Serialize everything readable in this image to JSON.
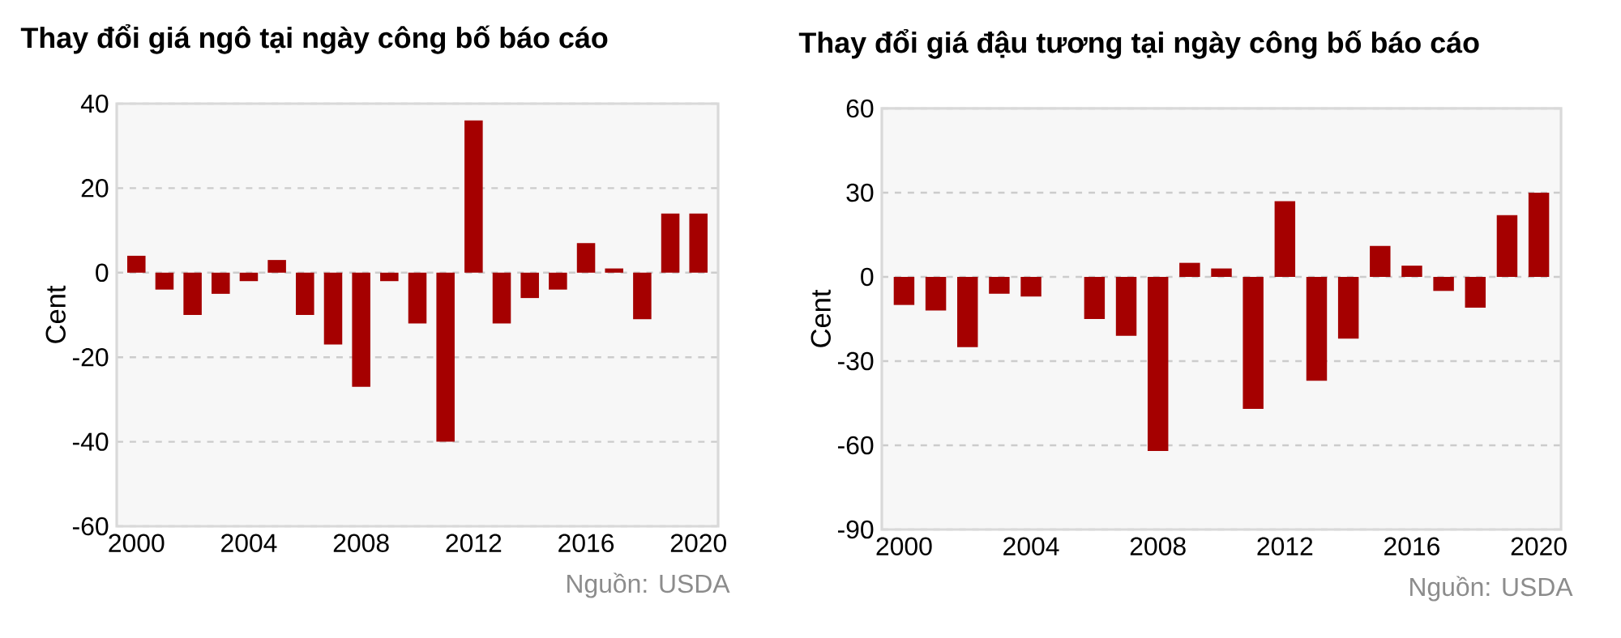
{
  "chart_data": [
    {
      "type": "bar",
      "title": "Thay đổi giá ngô tại ngày công bố báo cáo",
      "ylabel": "Cent",
      "color": "#a50000",
      "x": [
        2000,
        2001,
        2002,
        2003,
        2004,
        2005,
        2006,
        2007,
        2008,
        2009,
        2010,
        2011,
        2012,
        2013,
        2014,
        2015,
        2016,
        2017,
        2018,
        2019,
        2020
      ],
      "values": [
        4,
        -4,
        -10,
        -5,
        -2,
        3,
        -10,
        -17,
        -27,
        -2,
        -12,
        -40,
        36,
        -12,
        -6,
        -4,
        7,
        1,
        -11,
        14,
        14
      ],
      "xlim": [
        1999.3,
        2020.7
      ],
      "ylim": [
        -60,
        40
      ],
      "xticks": [
        2000,
        2004,
        2008,
        2012,
        2016,
        2020
      ],
      "yticks": [
        -60,
        -40,
        -20,
        0,
        20,
        40
      ],
      "grid": "y",
      "annotations": [
        "Nguồn: USDA"
      ]
    },
    {
      "type": "bar",
      "title": "Thay đổi giá đậu tương tại ngày công bố báo cáo",
      "ylabel": "Cent",
      "color": "#a50000",
      "x": [
        2000,
        2001,
        2002,
        2003,
        2004,
        2005,
        2006,
        2007,
        2008,
        2009,
        2010,
        2011,
        2012,
        2013,
        2014,
        2015,
        2016,
        2017,
        2018,
        2019,
        2020
      ],
      "values": [
        -10,
        -12,
        -25,
        -6,
        -7,
        null,
        -15,
        -21,
        -62,
        5,
        3,
        -47,
        27,
        -37,
        -22,
        11,
        4,
        -5,
        -11,
        22,
        30
      ],
      "xlim": [
        1999.3,
        2020.7
      ],
      "ylim": [
        -90,
        60
      ],
      "xticks": [
        2000,
        2004,
        2008,
        2012,
        2016,
        2020
      ],
      "yticks": [
        -90,
        -60,
        -30,
        0,
        30,
        60
      ],
      "grid": "y",
      "annotations": [
        "Nguồn: USDA"
      ]
    }
  ]
}
